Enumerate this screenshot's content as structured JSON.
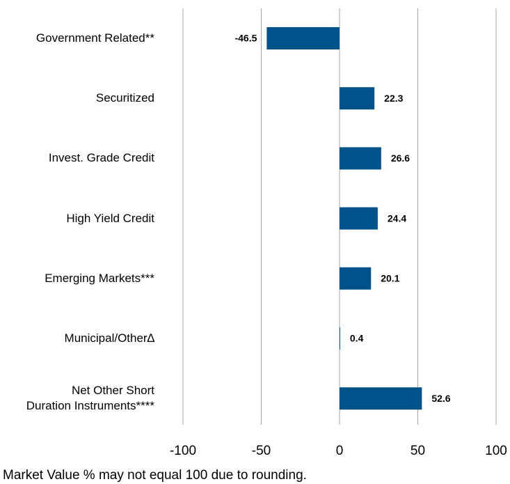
{
  "chart_data": {
    "type": "hbar",
    "categories": [
      "Government Related**",
      "Securitized",
      "Invest. Grade Credit",
      "High Yield Credit",
      "Emerging Markets***",
      "Municipal/Other∆",
      "Net Other Short\nDuration Instruments****"
    ],
    "values": [
      -46.5,
      22.3,
      26.6,
      24.4,
      20.1,
      0.4,
      52.6
    ],
    "color": "#00538a",
    "xlim": [
      -100,
      100
    ],
    "xticks": [
      -100,
      -50,
      0,
      50,
      100
    ],
    "grid": true,
    "footnote": "Market Value % may not equal 100 due to rounding."
  }
}
